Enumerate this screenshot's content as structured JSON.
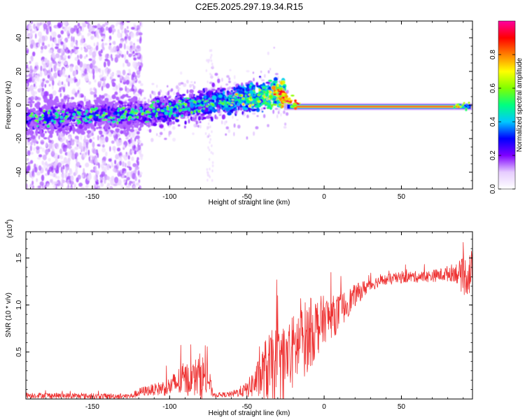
{
  "title": "C2E5.2025.297.19.34.R15",
  "chart_data": [
    {
      "type": "heatmap",
      "title": "C2E5.2025.297.19.34.R15",
      "xlabel": "Height of straight line (km)",
      "ylabel": "Frequency (Hz)",
      "xlim": [
        -193,
        96
      ],
      "ylim": [
        -50,
        50
      ],
      "xticks": [
        -150,
        -100,
        -50,
        0,
        50
      ],
      "yticks": [
        -40,
        -20,
        0,
        20,
        40
      ],
      "colorbar": {
        "label": "Normalized spectral amplitude",
        "range": [
          0,
          1
        ],
        "ticks": [
          0.0,
          0.2,
          0.4,
          0.6,
          0.8
        ],
        "tick_labels": [
          "0.0",
          "0.2",
          "0.4",
          "0.6",
          "0.8"
        ],
        "colormap": [
          "#ffffff",
          "#e6ccff",
          "#7f00ff",
          "#0000ff",
          "#00c8ff",
          "#00ff80",
          "#80ff00",
          "#ffff00",
          "#ff8000",
          "#ff0000",
          "#ff00a0"
        ]
      },
      "ridge": {
        "description": "dominant frequency ridge",
        "x": [
          -193,
          -150,
          -120,
          -100,
          -80,
          -60,
          -40,
          -30,
          -20,
          0,
          50,
          96
        ],
        "frequency": [
          -9,
          -6,
          -5,
          -3,
          1,
          3,
          5,
          8,
          1,
          -1,
          -1,
          0
        ],
        "peak_amplitude": [
          0.3,
          0.3,
          0.3,
          0.35,
          0.4,
          0.45,
          0.55,
          0.8,
          0.9,
          0.95,
          0.95,
          0.7
        ]
      }
    },
    {
      "type": "line",
      "xlabel": "Height of straight line (km)",
      "ylabel": "SNR (10 * v/v)",
      "y_scale_label": "(x10",
      "y_scale_exp": "4",
      "xlim": [
        -193,
        96
      ],
      "ylim": [
        0,
        1.78
      ],
      "xticks": [
        -150,
        -100,
        -50,
        0,
        50
      ],
      "yticks": [
        0.5,
        1.0,
        1.5
      ],
      "ytick_labels": [
        "0.5",
        "1.0",
        "1.5"
      ],
      "series": [
        {
          "name": "SNR",
          "color": "#ee3333",
          "x": [
            -193,
            -150,
            -125,
            -118,
            -110,
            -100,
            -92,
            -85,
            -80,
            -75,
            -72,
            -60,
            -50,
            -42,
            -38,
            -33,
            -28,
            -22,
            -18,
            -12,
            -6,
            0,
            6,
            10,
            14,
            20,
            28,
            35,
            45,
            55,
            65,
            75,
            85,
            90,
            96
          ],
          "y": [
            0.04,
            0.03,
            0.03,
            0.08,
            0.1,
            0.13,
            0.2,
            0.22,
            0.25,
            0.22,
            0.04,
            0.05,
            0.1,
            0.22,
            0.3,
            0.35,
            0.35,
            0.45,
            0.55,
            0.65,
            0.75,
            0.85,
            0.88,
            0.92,
            1.0,
            1.1,
            1.2,
            1.25,
            1.28,
            1.3,
            1.3,
            1.32,
            1.35,
            1.3,
            1.35
          ],
          "noise": [
            0.03,
            0.03,
            0.03,
            0.05,
            0.06,
            0.1,
            0.18,
            0.18,
            0.25,
            0.2,
            0.02,
            0.03,
            0.08,
            0.22,
            0.35,
            0.4,
            0.42,
            0.4,
            0.42,
            0.4,
            0.35,
            0.25,
            0.22,
            0.2,
            0.16,
            0.12,
            0.08,
            0.06,
            0.06,
            0.06,
            0.06,
            0.07,
            0.1,
            0.2,
            0.25
          ]
        }
      ]
    }
  ]
}
